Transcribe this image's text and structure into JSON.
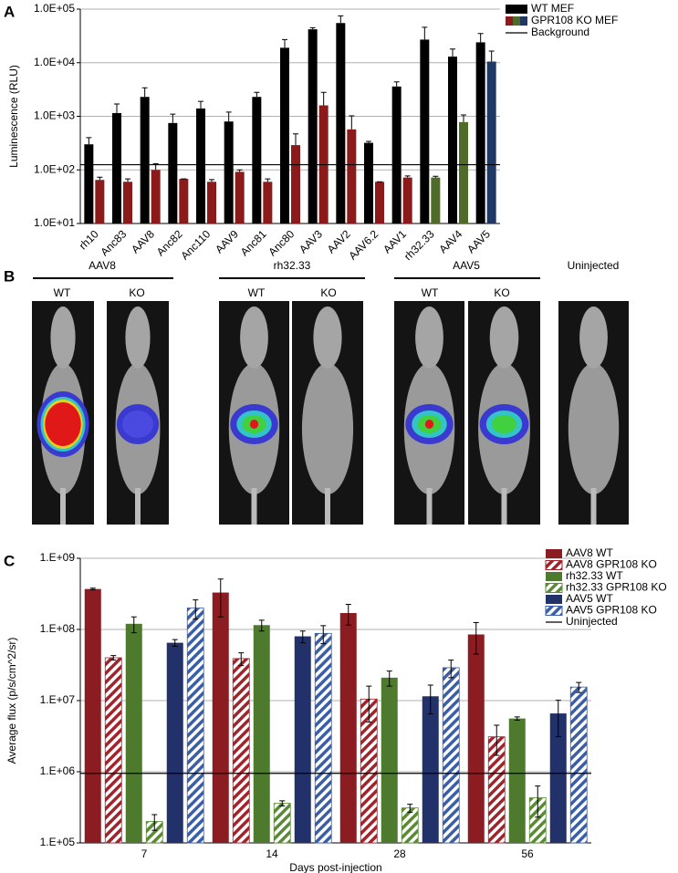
{
  "chart_data": [
    {
      "type": "bar",
      "panel": "A",
      "y_label": "Luminescence (RLU)",
      "log_scale": true,
      "grid": true,
      "error_bars": "upper",
      "legend": "top-right",
      "categories": [
        "rh10",
        "Anc83",
        "AAV8",
        "Anc82",
        "Anc110",
        "AAV9",
        "Anc81",
        "Anc80",
        "AAV3",
        "AAV2",
        "AAV6.2",
        "AAV1",
        "rh32.33",
        "AAV4",
        "AAV5"
      ],
      "series": [
        {
          "name": "WT MEF",
          "color": "#000000",
          "values": [
            300,
            1150,
            2300,
            750,
            1400,
            800,
            2300,
            19000,
            42000,
            55000,
            320,
            3600,
            27000,
            13000,
            24000
          ],
          "errors": [
            100,
            550,
            1100,
            350,
            500,
            400,
            500,
            8000,
            3000,
            20000,
            20,
            800,
            19000,
            5000,
            11000
          ]
        },
        {
          "name": "GPR108 KO MEF",
          "color": "#8b1a1a",
          "colors": [
            "#8b1a1a",
            "#8b1a1a",
            "#8b1a1a",
            "#8b1a1a",
            "#8b1a1a",
            "#8b1a1a",
            "#8b1a1a",
            "#8b1a1a",
            "#8b1a1a",
            "#8b1a1a",
            "#8b1a1a",
            "#8b1a1a",
            "#4e6b2a",
            "#4e6b2a",
            "#1f3864"
          ],
          "values": [
            65,
            60,
            100,
            68,
            60,
            92,
            60,
            290,
            1600,
            570,
            60,
            72,
            72,
            780,
            10500
          ],
          "errors": [
            8,
            8,
            30,
            0,
            6,
            8,
            8,
            180,
            1200,
            450,
            0,
            5,
            4,
            280,
            6000
          ]
        }
      ],
      "reference": {
        "name": "Background",
        "value": 125,
        "color": "#000000"
      },
      "ylim": [
        10,
        100000
      ],
      "yticks": [
        {
          "value": 10,
          "label": "1.0E+01"
        },
        {
          "value": 100,
          "label": "1.0E+02"
        },
        {
          "value": 1000,
          "label": "1.0E+03"
        },
        {
          "value": 10000,
          "label": "1.0E+04"
        },
        {
          "value": 100000,
          "label": "1.0E+05"
        }
      ]
    },
    {
      "type": "bar",
      "panel": "C",
      "y_label": "Average flux (p/s/cm^2/sr)",
      "x_label": "Days post-injection",
      "log_scale": true,
      "grid": true,
      "error_bars": "both",
      "legend": "top-right",
      "categories": [
        "7",
        "14",
        "28",
        "56"
      ],
      "series": [
        {
          "name": "AAV8 WT",
          "color": "#8b1c22",
          "hatch": false,
          "values": [
            370000000,
            330000000,
            170000000,
            85000000
          ],
          "errors": [
            10000000,
            180000000,
            55000000,
            40000000
          ]
        },
        {
          "name": "AAV8 GPR108 KO",
          "color": "#a3232b",
          "hatch": true,
          "values": [
            40000000,
            39000000,
            10500000,
            3100000
          ],
          "errors": [
            3000000,
            8000000,
            5500000,
            1400000
          ]
        },
        {
          "name": "rh32.33 WT",
          "color": "#4e7a2e",
          "hatch": false,
          "values": [
            120000000,
            115000000,
            21000000,
            5600000
          ],
          "errors": [
            30000000,
            20000000,
            5000000,
            300000
          ]
        },
        {
          "name": "rh32.33 GPR108 KO",
          "color": "#5a8a35",
          "hatch": true,
          "values": [
            200000,
            360000,
            310000,
            430000
          ],
          "errors": [
            50000,
            30000,
            40000,
            200000
          ]
        },
        {
          "name": "AAV5 WT",
          "color": "#23316b",
          "hatch": false,
          "values": [
            65000000,
            80000000,
            11500000,
            6600000
          ],
          "errors": [
            7000000,
            15000000,
            5000000,
            3500000
          ]
        },
        {
          "name": "AAV5 GPR108 KO",
          "color": "#3b5ea8",
          "hatch": true,
          "values": [
            200000000,
            88000000,
            29000000,
            15500000
          ],
          "errors": [
            60000000,
            25000000,
            8000000,
            2500000
          ]
        }
      ],
      "reference": {
        "name": "Uninjected",
        "value": 950000,
        "color": "#000000"
      },
      "ylim": [
        100000,
        1000000000
      ],
      "yticks": [
        {
          "value": 100000,
          "label": "1.E+05"
        },
        {
          "value": 1000000,
          "label": "1.E+06"
        },
        {
          "value": 10000000,
          "label": "1.E+07"
        },
        {
          "value": 100000000,
          "label": "1.E+08"
        },
        {
          "value": 1000000000,
          "label": "1.E+09"
        }
      ]
    }
  ],
  "panel_b": {
    "panel": "B",
    "groups": [
      {
        "name": "AAV8",
        "conditions": [
          "WT",
          "KO"
        ]
      },
      {
        "name": "rh32.33",
        "conditions": [
          "WT",
          "KO"
        ]
      },
      {
        "name": "AAV5",
        "conditions": [
          "WT",
          "KO"
        ]
      },
      {
        "name": "Uninjected"
      }
    ]
  }
}
